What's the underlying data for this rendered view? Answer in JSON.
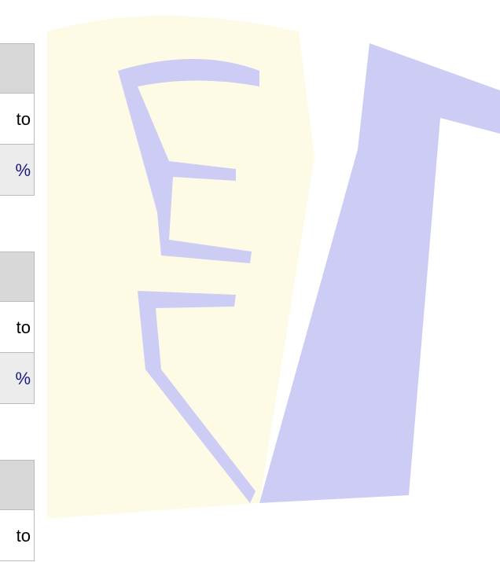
{
  "tables": [
    {
      "rows": [
        "to",
        "%"
      ]
    },
    {
      "rows": [
        "to",
        "%"
      ]
    },
    {
      "rows": [
        "to"
      ]
    }
  ]
}
